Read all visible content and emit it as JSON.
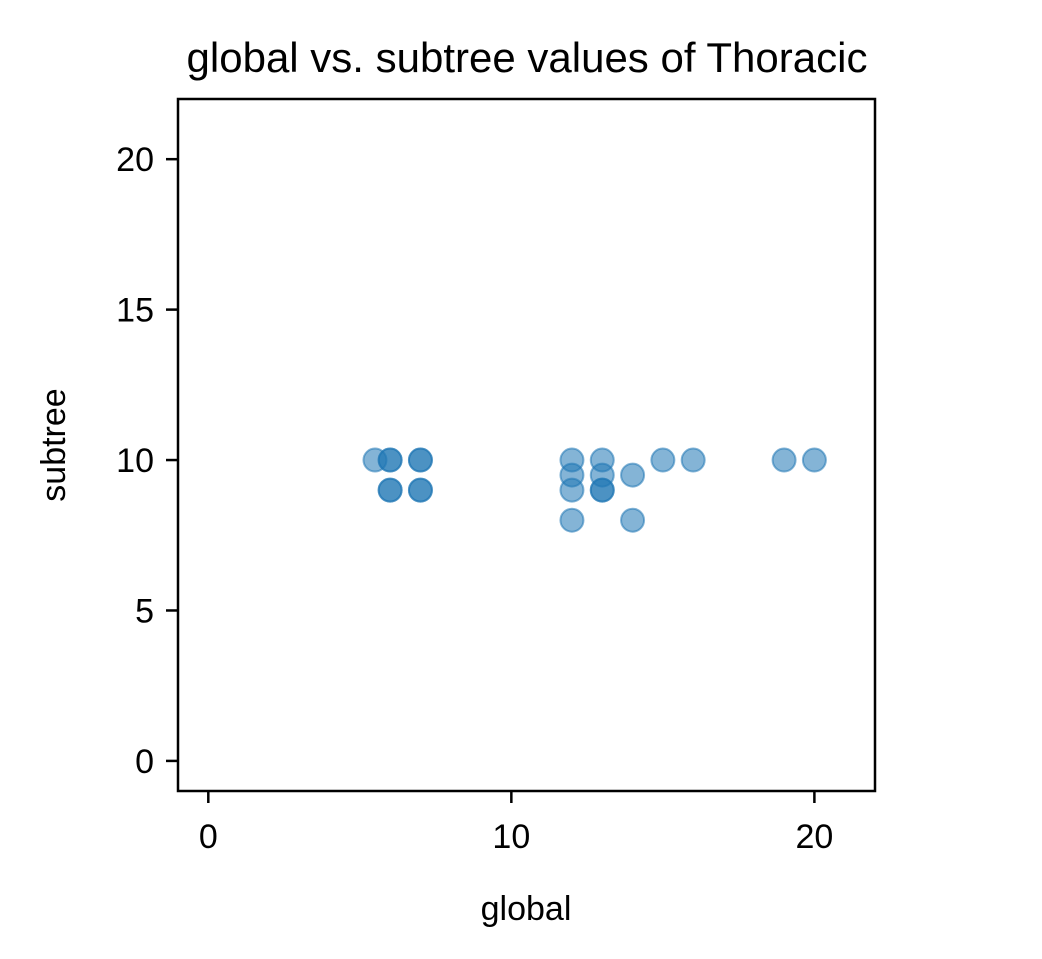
{
  "chart_data": {
    "type": "scatter",
    "title": "global vs. subtree values of Thoracic",
    "xlabel": "global",
    "ylabel": "subtree",
    "xlim": [
      -1,
      22
    ],
    "ylim": [
      -1,
      22
    ],
    "xticks": [
      0,
      10,
      20
    ],
    "yticks": [
      0,
      5,
      10,
      15,
      20
    ],
    "xtick_labels": [
      "0",
      "10",
      "20"
    ],
    "ytick_labels": [
      "0",
      "5",
      "10",
      "15",
      "20"
    ],
    "grid": false,
    "marker_color": "#1f77b4",
    "marker_alpha": 0.55,
    "points": [
      {
        "x": 5.5,
        "y": 10
      },
      {
        "x": 6,
        "y": 10
      },
      {
        "x": 6,
        "y": 10
      },
      {
        "x": 7,
        "y": 10
      },
      {
        "x": 7,
        "y": 10
      },
      {
        "x": 6,
        "y": 9
      },
      {
        "x": 6,
        "y": 9
      },
      {
        "x": 7,
        "y": 9
      },
      {
        "x": 7,
        "y": 9
      },
      {
        "x": 12,
        "y": 10
      },
      {
        "x": 13,
        "y": 10
      },
      {
        "x": 12,
        "y": 9.5
      },
      {
        "x": 13,
        "y": 9.5
      },
      {
        "x": 12,
        "y": 9
      },
      {
        "x": 13,
        "y": 9
      },
      {
        "x": 13,
        "y": 9
      },
      {
        "x": 14,
        "y": 9.5
      },
      {
        "x": 15,
        "y": 10
      },
      {
        "x": 16,
        "y": 10
      },
      {
        "x": 19,
        "y": 10
      },
      {
        "x": 20,
        "y": 10
      },
      {
        "x": 12,
        "y": 8
      },
      {
        "x": 14,
        "y": 8
      }
    ]
  }
}
